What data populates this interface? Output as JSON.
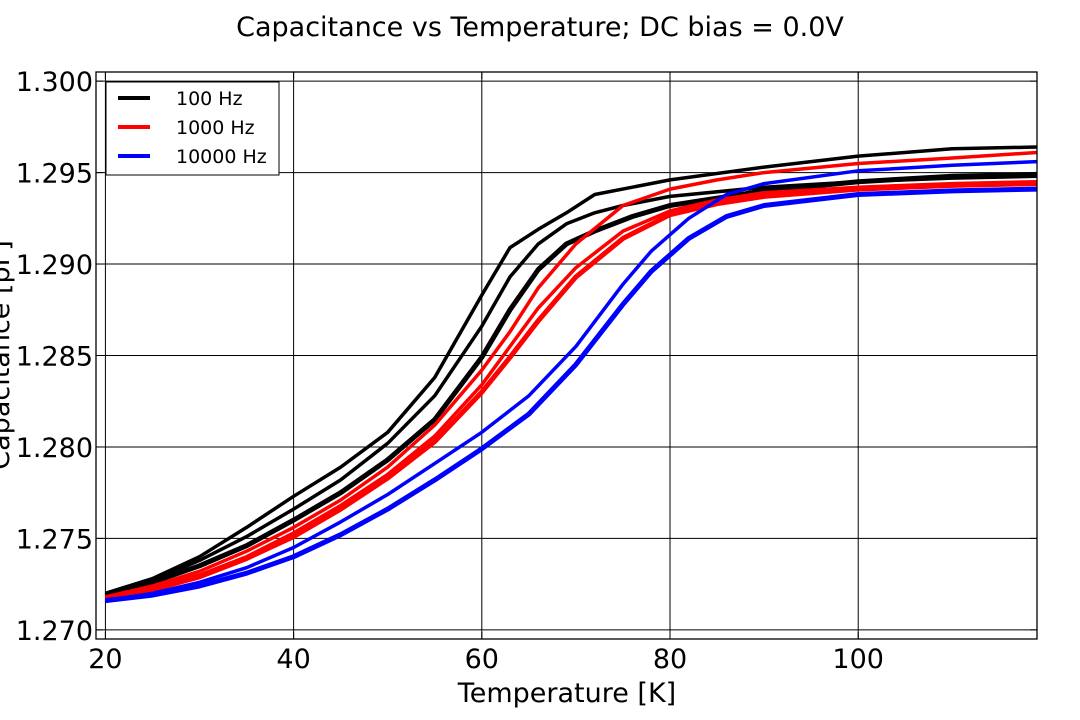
{
  "chart_data": {
    "type": "line",
    "title": "Capacitance vs Temperature; DC bias = 0.0V",
    "xlabel": "Temperature [K]",
    "ylabel": "Capacitance [pF]",
    "xlim": [
      19,
      119
    ],
    "ylim": [
      1.2695,
      1.3005
    ],
    "x_ticks": [
      20,
      40,
      60,
      80,
      100
    ],
    "x_tick_labels": [
      "20",
      "40",
      "60",
      "80",
      "100"
    ],
    "y_ticks": [
      1.27,
      1.275,
      1.28,
      1.285,
      1.29,
      1.295,
      1.3
    ],
    "y_tick_labels": [
      "1.270",
      "1.275",
      "1.280",
      "1.285",
      "1.290",
      "1.295",
      "1.300"
    ],
    "grid": true,
    "legend": {
      "position": "top-left",
      "entries": [
        {
          "label": "100 Hz",
          "color": "#000000"
        },
        {
          "label": "1000 Hz",
          "color": "#ff0000"
        },
        {
          "label": "10000 Hz",
          "color": "#0000ff"
        }
      ]
    },
    "series": [
      {
        "name": "100 Hz",
        "color": "#000000",
        "width": 3.5,
        "x": [
          20,
          25,
          30,
          35,
          40,
          45,
          50,
          55,
          60,
          63,
          66,
          69,
          72,
          75,
          80,
          90,
          100,
          110,
          119
        ],
        "y": [
          1.2719,
          1.2727,
          1.2738,
          1.2751,
          1.2766,
          1.2782,
          1.2802,
          1.2828,
          1.2866,
          1.2893,
          1.2911,
          1.2922,
          1.2928,
          1.2932,
          1.2937,
          1.2942,
          1.2945,
          1.2947,
          1.2948
        ]
      },
      {
        "name": "100 Hz",
        "color": "#000000",
        "width": 3.5,
        "x": [
          20,
          25,
          30,
          35,
          40,
          45,
          50,
          55,
          60,
          63,
          66,
          69,
          72,
          76,
          80,
          90,
          100,
          110,
          119
        ],
        "y": [
          1.272,
          1.2728,
          1.274,
          1.2756,
          1.2773,
          1.2789,
          1.2808,
          1.2838,
          1.2883,
          1.2909,
          1.2919,
          1.2928,
          1.2938,
          1.2942,
          1.2946,
          1.2953,
          1.2959,
          1.2963,
          1.2964
        ]
      },
      {
        "name": "100 Hz",
        "color": "#000000",
        "width": 5,
        "x": [
          20,
          25,
          30,
          35,
          40,
          45,
          50,
          55,
          60,
          63,
          66,
          69,
          72,
          76,
          80,
          90,
          100,
          110,
          119
        ],
        "y": [
          1.2719,
          1.2726,
          1.2735,
          1.2746,
          1.276,
          1.2775,
          1.2793,
          1.2815,
          1.2849,
          1.2875,
          1.2897,
          1.2911,
          1.2918,
          1.2926,
          1.2932,
          1.294,
          1.2945,
          1.2948,
          1.2949
        ]
      },
      {
        "name": "1000 Hz",
        "color": "#ff0000",
        "width": 3.5,
        "x": [
          20,
          25,
          30,
          35,
          40,
          45,
          50,
          55,
          60,
          63,
          66,
          70,
          75,
          80,
          85,
          90,
          100,
          110,
          119
        ],
        "y": [
          1.2718,
          1.2724,
          1.2732,
          1.2743,
          1.2756,
          1.2771,
          1.2789,
          1.2812,
          1.2842,
          1.2863,
          1.2887,
          1.2911,
          1.2932,
          1.2941,
          1.2946,
          1.295,
          1.2955,
          1.2958,
          1.2961
        ]
      },
      {
        "name": "1000 Hz",
        "color": "#ff0000",
        "width": 3.5,
        "x": [
          20,
          25,
          30,
          35,
          40,
          45,
          50,
          55,
          60,
          63,
          66,
          70,
          75,
          80,
          85,
          90,
          100,
          110,
          119
        ],
        "y": [
          1.2718,
          1.2723,
          1.273,
          1.274,
          1.2753,
          1.2768,
          1.2785,
          1.2806,
          1.2834,
          1.2855,
          1.2876,
          1.2898,
          1.2918,
          1.2929,
          1.2935,
          1.2939,
          1.2942,
          1.2944,
          1.2945
        ]
      },
      {
        "name": "1000 Hz",
        "color": "#ff0000",
        "width": 5,
        "x": [
          20,
          25,
          30,
          35,
          40,
          45,
          50,
          55,
          60,
          63,
          66,
          70,
          75,
          80,
          85,
          90,
          100,
          110,
          119
        ],
        "y": [
          1.2717,
          1.2722,
          1.2729,
          1.2739,
          1.2751,
          1.2766,
          1.2783,
          1.2803,
          1.283,
          1.2849,
          1.2869,
          1.2893,
          1.2914,
          1.2927,
          1.2933,
          1.2937,
          1.2941,
          1.2943,
          1.2944
        ]
      },
      {
        "name": "10000 Hz",
        "color": "#0000ff",
        "width": 3.5,
        "x": [
          20,
          25,
          30,
          35,
          40,
          45,
          50,
          55,
          60,
          65,
          70,
          75,
          78,
          82,
          86,
          90,
          100,
          110,
          119
        ],
        "y": [
          1.2716,
          1.272,
          1.2726,
          1.2734,
          1.2745,
          1.2759,
          1.2774,
          1.2791,
          1.2808,
          1.2828,
          1.2855,
          1.2889,
          1.2907,
          1.2925,
          1.2938,
          1.2944,
          1.2951,
          1.2954,
          1.2956
        ]
      },
      {
        "name": "10000 Hz",
        "color": "#0000ff",
        "width": 5,
        "x": [
          20,
          25,
          30,
          35,
          40,
          45,
          50,
          55,
          60,
          65,
          70,
          75,
          78,
          82,
          86,
          90,
          100,
          110,
          119
        ],
        "y": [
          1.2716,
          1.2719,
          1.2724,
          1.2731,
          1.274,
          1.2752,
          1.2766,
          1.2782,
          1.2799,
          1.2818,
          1.2845,
          1.2878,
          1.2896,
          1.2914,
          1.2926,
          1.2932,
          1.2938,
          1.294,
          1.2941
        ]
      }
    ]
  }
}
